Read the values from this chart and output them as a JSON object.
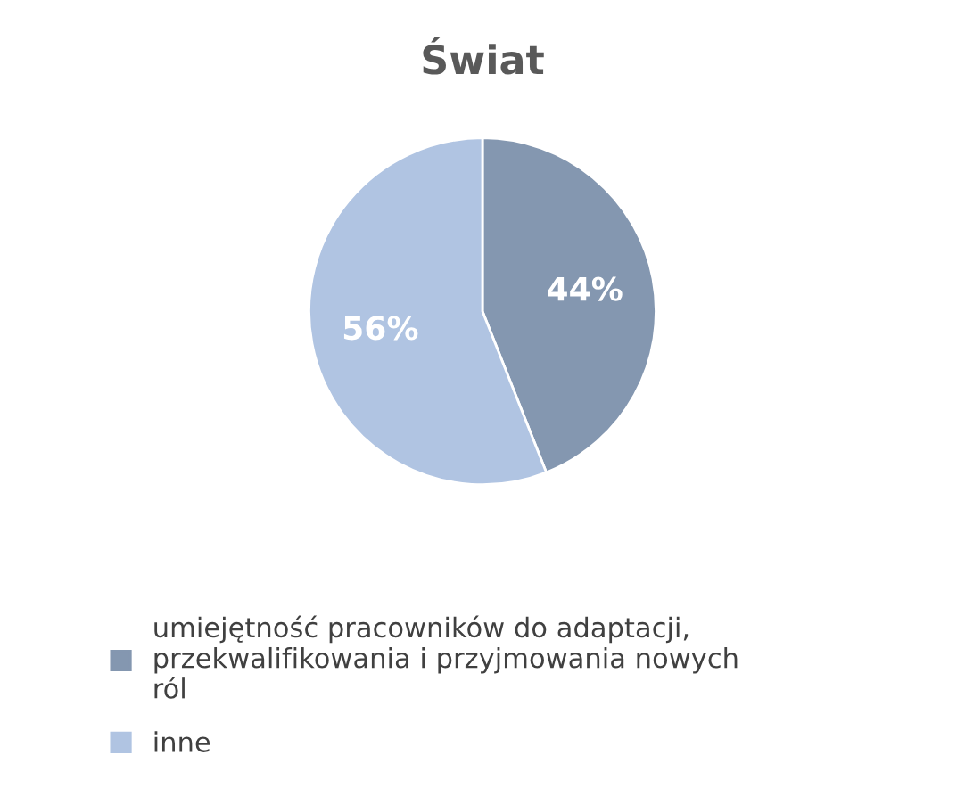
{
  "chart_data": {
    "type": "pie",
    "title": "Świat",
    "categories": [
      "umiejętność pracowników do adaptacji, przekwalifikowania i przyjmowania nowych ról",
      "inne"
    ],
    "values": [
      44,
      56
    ],
    "colors": [
      "#8497b0",
      "#b0c4e2"
    ],
    "value_labels": [
      "44%",
      "56%"
    ],
    "legend": "bottom"
  }
}
